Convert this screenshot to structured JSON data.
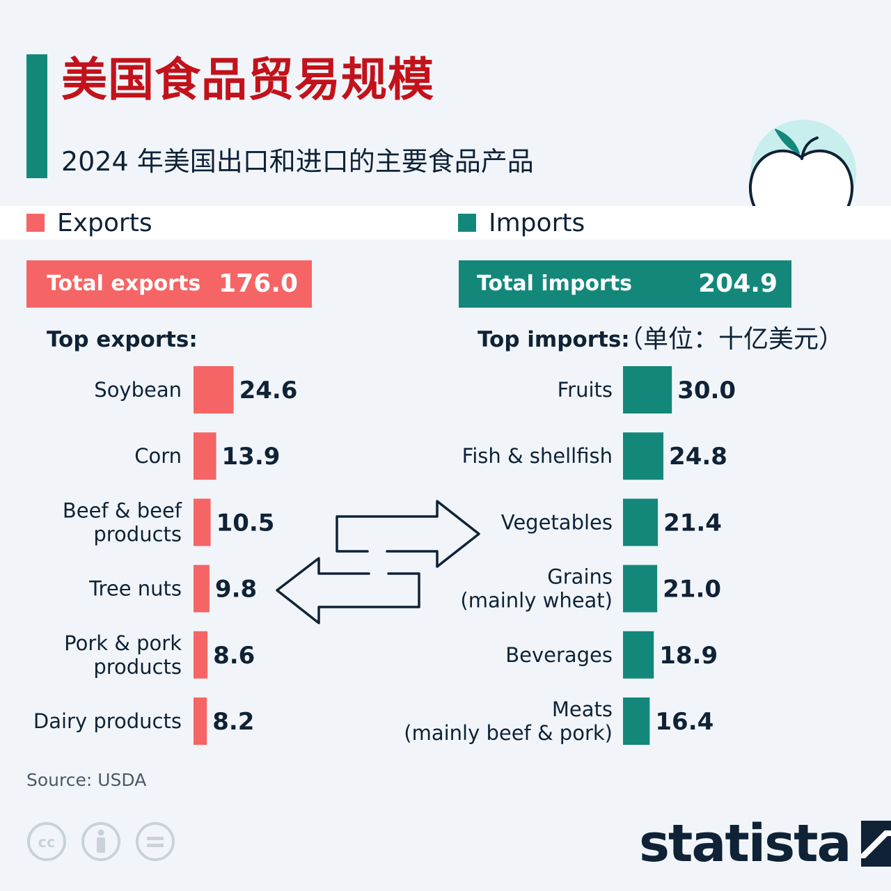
{
  "header": {
    "title": "美国食品贸易规模",
    "subtitle": "2024 年美国出口和进口的主要食品产品"
  },
  "legend": {
    "exports": "Exports",
    "imports": "Imports"
  },
  "totals": {
    "exports_label": "Total exports",
    "exports_value": "176.0",
    "imports_label": "Total imports",
    "imports_value": "204.9"
  },
  "headings": {
    "top_exports": "Top exports:",
    "top_imports": "Top imports:",
    "unit": "（单位：十亿美元）"
  },
  "colors": {
    "exports": "#f56565",
    "imports": "#13887a",
    "title": "#c2121b",
    "text": "#0f2236",
    "background": "#f1f5f9"
  },
  "chart_data": [
    {
      "type": "bar",
      "orientation": "horizontal",
      "title": "Top exports:",
      "categories": [
        "Soybean",
        "Corn",
        "Beef & beef\nproducts",
        "Tree nuts",
        "Pork & pork\nproducts",
        "Dairy products"
      ],
      "values": [
        24.6,
        13.9,
        10.5,
        9.8,
        8.6,
        8.2
      ],
      "value_labels": [
        "24.6",
        "13.9",
        "10.5",
        "9.8",
        "8.6",
        "8.2"
      ],
      "color": "#f56565"
    },
    {
      "type": "bar",
      "orientation": "horizontal",
      "title": "Top imports:",
      "categories": [
        "Fruits",
        "Fish & shellfish",
        "Vegetables",
        "Grains\n(mainly wheat)",
        "Beverages",
        "Meats\n(mainly beef & pork)"
      ],
      "values": [
        30.0,
        24.8,
        21.4,
        21.0,
        18.9,
        16.4
      ],
      "value_labels": [
        "30.0",
        "24.8",
        "21.4",
        "21.0",
        "18.9",
        "16.4"
      ],
      "color": "#13887a"
    }
  ],
  "icons": {
    "apple": "apple-icon",
    "exchange": "exchange-arrows-icon",
    "license": [
      "cc-icon",
      "by-icon",
      "nd-icon"
    ],
    "brand": "statista-logo-icon"
  },
  "footer": {
    "source": "Source: USDA",
    "brand": "statista"
  }
}
